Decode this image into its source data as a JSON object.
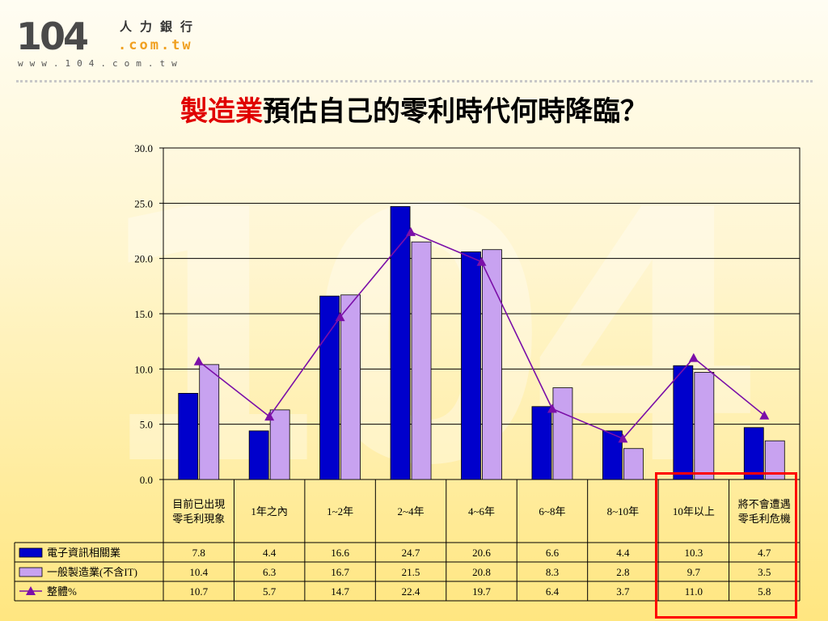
{
  "logo": {
    "number": "104",
    "chinese": "人力銀行",
    "domain": ".com.tw",
    "url": "www.104.com.tw"
  },
  "watermark": "104",
  "title": {
    "highlight": "製造業",
    "rest": "預估自己的零利時代何時降臨？"
  },
  "colors": {
    "series1": "#0000cc",
    "series2": "#c8a2f0",
    "series3": "#7b0fa8",
    "highlight_box": "#ff0000",
    "title_highlight": "#e00000"
  },
  "chart_data": {
    "type": "bar",
    "categories": [
      [
        "目前已出現",
        "零毛利現象"
      ],
      [
        "1年之內"
      ],
      [
        "1~2年"
      ],
      [
        "2~4年"
      ],
      [
        "4~6年"
      ],
      [
        "6~8年"
      ],
      [
        "8~10年"
      ],
      [
        "10年以上"
      ],
      [
        "將不會遭遇",
        "零毛利危機"
      ]
    ],
    "series": [
      {
        "name": "電子資訊相關業",
        "type": "bar",
        "values": [
          7.8,
          4.4,
          16.6,
          24.7,
          20.6,
          6.6,
          4.4,
          10.3,
          4.7
        ]
      },
      {
        "name": "一般製造業(不含IT)",
        "type": "bar",
        "values": [
          10.4,
          6.3,
          16.7,
          21.5,
          20.8,
          8.3,
          2.8,
          9.7,
          3.5
        ]
      },
      {
        "name": "整體%",
        "type": "line",
        "marker": "triangle",
        "values": [
          10.7,
          5.7,
          14.7,
          22.4,
          19.7,
          6.4,
          3.7,
          11.0,
          5.8
        ]
      }
    ],
    "ylim": [
      0,
      30
    ],
    "yticks": [
      "0.0",
      "5.0",
      "10.0",
      "15.0",
      "20.0",
      "25.0",
      "30.0"
    ],
    "grid": true,
    "legend": "data-table",
    "highlighted_categories": [
      "10年以上",
      "將不會遭遇零毛利危機"
    ]
  }
}
